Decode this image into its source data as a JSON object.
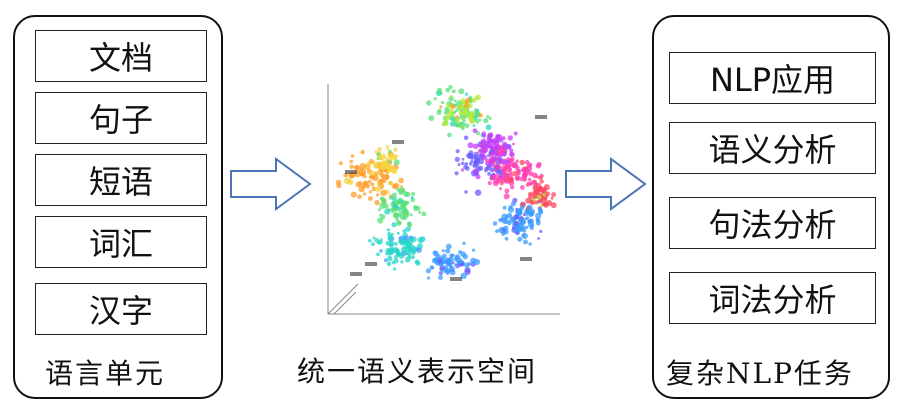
{
  "left": {
    "items": [
      "文档",
      "句子",
      "短语",
      "词汇",
      "汉字"
    ],
    "caption": "语言单元"
  },
  "center": {
    "caption": "统一语义表示空间"
  },
  "right": {
    "items": [
      "NLP应用",
      "语义分析",
      "句法分析",
      "词法分析"
    ],
    "caption": "复杂NLP任务"
  },
  "colors": {
    "arrow_fill": "#ffffff",
    "arrow_stroke": "#4a76b8",
    "cluster_palette": [
      "#ff9e2a",
      "#f6d33a",
      "#58e07a",
      "#28d6c8",
      "#3a9bff",
      "#6a5cff",
      "#c33cff",
      "#ff3fb2",
      "#ff4560",
      "#b8e93a"
    ]
  }
}
